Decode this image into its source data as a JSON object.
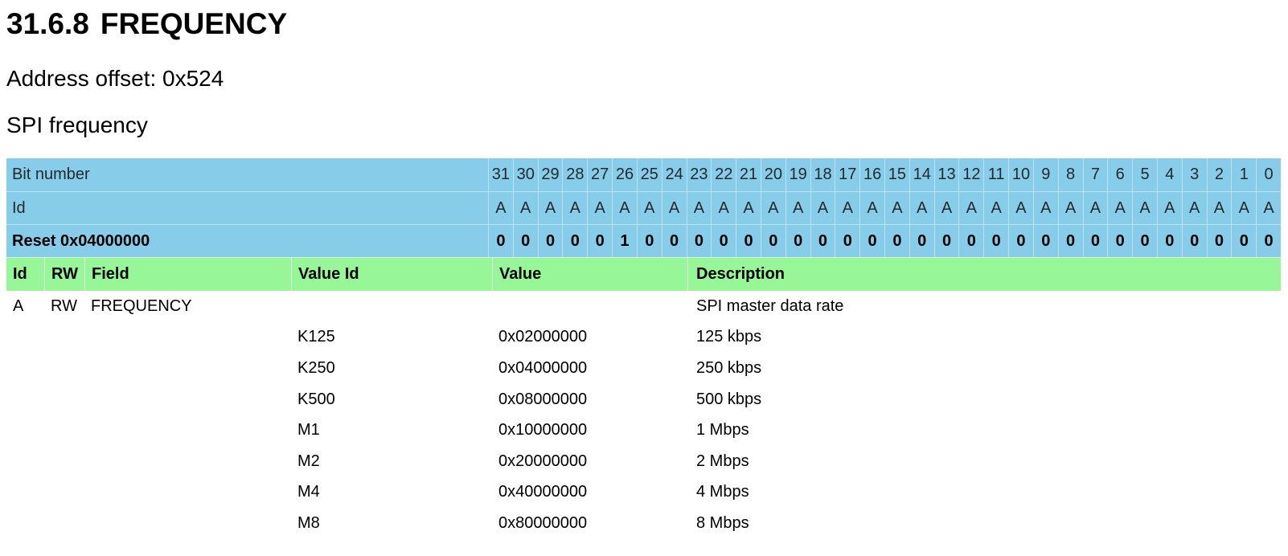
{
  "page": {
    "title_number": "31.6.8",
    "title_text": "FREQUENCY",
    "address_offset": "Address offset: 0x524",
    "description": "SPI frequency"
  },
  "colors": {
    "table_header_blue": "#87CDE9",
    "fields_header_green": "#97F697"
  },
  "register_table": {
    "bit_number_label": "Bit number",
    "id_label": "Id",
    "reset_label": "Reset 0x04000000",
    "bit_numbers": [
      "31",
      "30",
      "29",
      "28",
      "27",
      "26",
      "25",
      "24",
      "23",
      "22",
      "21",
      "20",
      "19",
      "18",
      "17",
      "16",
      "15",
      "14",
      "13",
      "12",
      "11",
      "10",
      "9",
      "8",
      "7",
      "6",
      "5",
      "4",
      "3",
      "2",
      "1",
      "0"
    ],
    "bit_ids": [
      "A",
      "A",
      "A",
      "A",
      "A",
      "A",
      "A",
      "A",
      "A",
      "A",
      "A",
      "A",
      "A",
      "A",
      "A",
      "A",
      "A",
      "A",
      "A",
      "A",
      "A",
      "A",
      "A",
      "A",
      "A",
      "A",
      "A",
      "A",
      "A",
      "A",
      "A",
      "A"
    ],
    "reset_bits": [
      "0",
      "0",
      "0",
      "0",
      "0",
      "1",
      "0",
      "0",
      "0",
      "0",
      "0",
      "0",
      "0",
      "0",
      "0",
      "0",
      "0",
      "0",
      "0",
      "0",
      "0",
      "0",
      "0",
      "0",
      "0",
      "0",
      "0",
      "0",
      "0",
      "0",
      "0",
      "0"
    ]
  },
  "fields_table": {
    "headers": [
      "Id",
      "RW",
      "Field",
      "Value Id",
      "Value",
      "Description"
    ],
    "rows": [
      {
        "id": "A",
        "rw": "RW",
        "field": "FREQUENCY",
        "value_id": "",
        "value": "",
        "description": "SPI master data rate"
      },
      {
        "id": "",
        "rw": "",
        "field": "",
        "value_id": "K125",
        "value": "0x02000000",
        "description": "125 kbps"
      },
      {
        "id": "",
        "rw": "",
        "field": "",
        "value_id": "K250",
        "value": "0x04000000",
        "description": "250 kbps"
      },
      {
        "id": "",
        "rw": "",
        "field": "",
        "value_id": "K500",
        "value": "0x08000000",
        "description": "500 kbps"
      },
      {
        "id": "",
        "rw": "",
        "field": "",
        "value_id": "M1",
        "value": "0x10000000",
        "description": "1 Mbps"
      },
      {
        "id": "",
        "rw": "",
        "field": "",
        "value_id": "M2",
        "value": "0x20000000",
        "description": "2 Mbps"
      },
      {
        "id": "",
        "rw": "",
        "field": "",
        "value_id": "M4",
        "value": "0x40000000",
        "description": "4 Mbps"
      },
      {
        "id": "",
        "rw": "",
        "field": "",
        "value_id": "M8",
        "value": "0x80000000",
        "description": "8 Mbps"
      }
    ]
  }
}
